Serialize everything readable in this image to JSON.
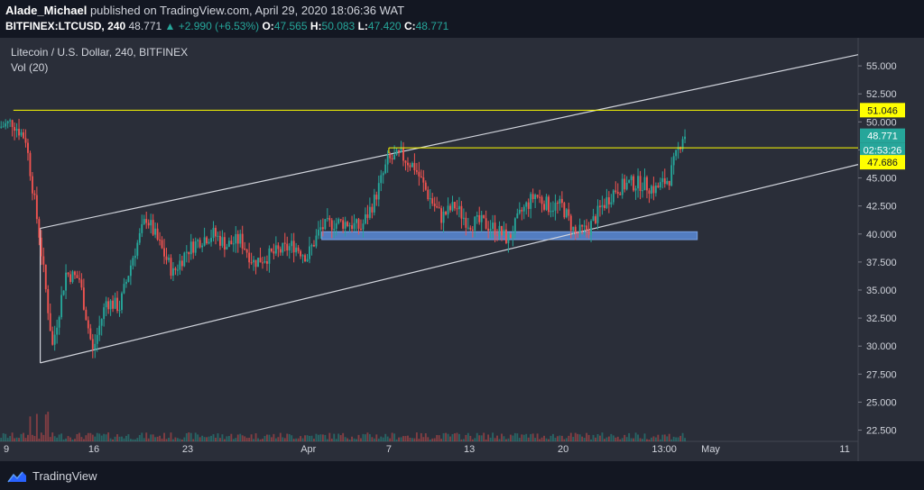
{
  "header": {
    "author": "Alade_Michael",
    "published_text": "published on TradingView.com, April 29, 2020 18:06:36 WAT",
    "symbol": "BITFINEX:LTCUSD, 240",
    "price": "48.771",
    "change": "▲ +2.990 (+6.53%)",
    "o_label": "O:",
    "o": "47.565",
    "h_label": "H:",
    "h": "50.083",
    "l_label": "L:",
    "l": "47.420",
    "c_label": "C:",
    "c": "48.771"
  },
  "footer": {
    "brand": "TradingView"
  },
  "colors": {
    "background": "#2a2e39",
    "bull": "#26a69a",
    "bear": "#ef5350",
    "resistance": "#ffff00",
    "support_zone": "#5b8bd9",
    "channel": "#d1d4dc",
    "price_badge": "#26a69a"
  },
  "chart_data": {
    "type": "candlestick",
    "title": "Litecoin / U.S. Dollar, 240, BITFINEX",
    "indicator": "Vol (20)",
    "interval": "240",
    "ylim": [
      21.5,
      57.5
    ],
    "y_ticks": [
      "55.000",
      "52.500",
      "50.000",
      "47.500",
      "45.000",
      "42.500",
      "40.000",
      "37.500",
      "35.000",
      "32.500",
      "30.000",
      "27.500",
      "25.000",
      "22.500"
    ],
    "x_ticks": [
      "9",
      "16",
      "23",
      "Apr",
      "7",
      "13",
      "20",
      "13:00",
      "May",
      "11"
    ],
    "x_tick_dates": [
      "2020-03-09",
      "2020-03-16",
      "2020-03-23",
      "2020-04-01",
      "2020-04-07",
      "2020-04-13",
      "2020-04-20",
      "2020-04-27T13:00",
      "2020-05-01",
      "2020-05-11"
    ],
    "x_range": [
      "2020-03-09",
      "2020-05-12"
    ],
    "price_labels": {
      "resistance_upper": "51.046",
      "last_price": "48.771",
      "countdown": "02:53:26",
      "resistance_lower": "47.686"
    },
    "horizontal_lines": [
      {
        "name": "Upper resistance",
        "value": 51.046,
        "from": "2020-03-10",
        "to": "2020-05-12"
      },
      {
        "name": "Lower resistance",
        "value": 47.686,
        "from": "2020-04-07",
        "to": "2020-05-12"
      }
    ],
    "support_zone": {
      "from": "2020-04-02",
      "to": "2020-04-30",
      "low": 39.5,
      "high": 40.2
    },
    "channel": {
      "upper": [
        [
          "2020-03-12",
          40.5
        ],
        [
          "2020-05-12",
          56.0
        ]
      ],
      "lower": [
        [
          "2020-03-12",
          28.5
        ],
        [
          "2020-05-12",
          46.2
        ]
      ]
    },
    "price_path": [
      [
        "2020-03-09",
        49.5
      ],
      [
        "2020-03-10",
        50.0
      ],
      [
        "2020-03-11",
        48.5
      ],
      [
        "2020-03-12",
        40.0
      ],
      [
        "2020-03-13",
        30.0
      ],
      [
        "2020-03-14",
        36.5
      ],
      [
        "2020-03-15",
        36.0
      ],
      [
        "2020-03-16",
        29.5
      ],
      [
        "2020-03-17",
        34.0
      ],
      [
        "2020-03-18",
        33.5
      ],
      [
        "2020-03-19",
        38.0
      ],
      [
        "2020-03-20",
        41.5
      ],
      [
        "2020-03-21",
        39.0
      ],
      [
        "2020-03-22",
        36.5
      ],
      [
        "2020-03-23",
        38.5
      ],
      [
        "2020-03-24",
        39.5
      ],
      [
        "2020-03-25",
        40.0
      ],
      [
        "2020-03-26",
        39.0
      ],
      [
        "2020-03-27",
        39.5
      ],
      [
        "2020-03-28",
        37.5
      ],
      [
        "2020-03-29",
        38.0
      ],
      [
        "2020-03-30",
        38.5
      ],
      [
        "2020-03-31",
        39.0
      ],
      [
        "2020-04-01",
        38.0
      ],
      [
        "2020-04-02",
        40.5
      ],
      [
        "2020-04-03",
        41.0
      ],
      [
        "2020-04-04",
        41.0
      ],
      [
        "2020-04-05",
        40.5
      ],
      [
        "2020-04-06",
        43.0
      ],
      [
        "2020-04-07",
        46.5
      ],
      [
        "2020-04-08",
        47.0
      ],
      [
        "2020-04-09",
        46.0
      ],
      [
        "2020-04-10",
        43.5
      ],
      [
        "2020-04-11",
        41.5
      ],
      [
        "2020-04-12",
        42.5
      ],
      [
        "2020-04-13",
        41.0
      ],
      [
        "2020-04-14",
        41.0
      ],
      [
        "2020-04-15",
        40.5
      ],
      [
        "2020-04-16",
        39.5
      ],
      [
        "2020-04-17",
        42.0
      ],
      [
        "2020-04-18",
        43.5
      ],
      [
        "2020-04-19",
        42.5
      ],
      [
        "2020-04-20",
        42.5
      ],
      [
        "2020-04-21",
        40.0
      ],
      [
        "2020-04-22",
        40.5
      ],
      [
        "2020-04-23",
        42.5
      ],
      [
        "2020-04-24",
        44.0
      ],
      [
        "2020-04-25",
        44.5
      ],
      [
        "2020-04-26",
        44.5
      ],
      [
        "2020-04-27",
        44.0
      ],
      [
        "2020-04-28",
        45.0
      ],
      [
        "2020-04-29",
        48.8
      ]
    ]
  }
}
